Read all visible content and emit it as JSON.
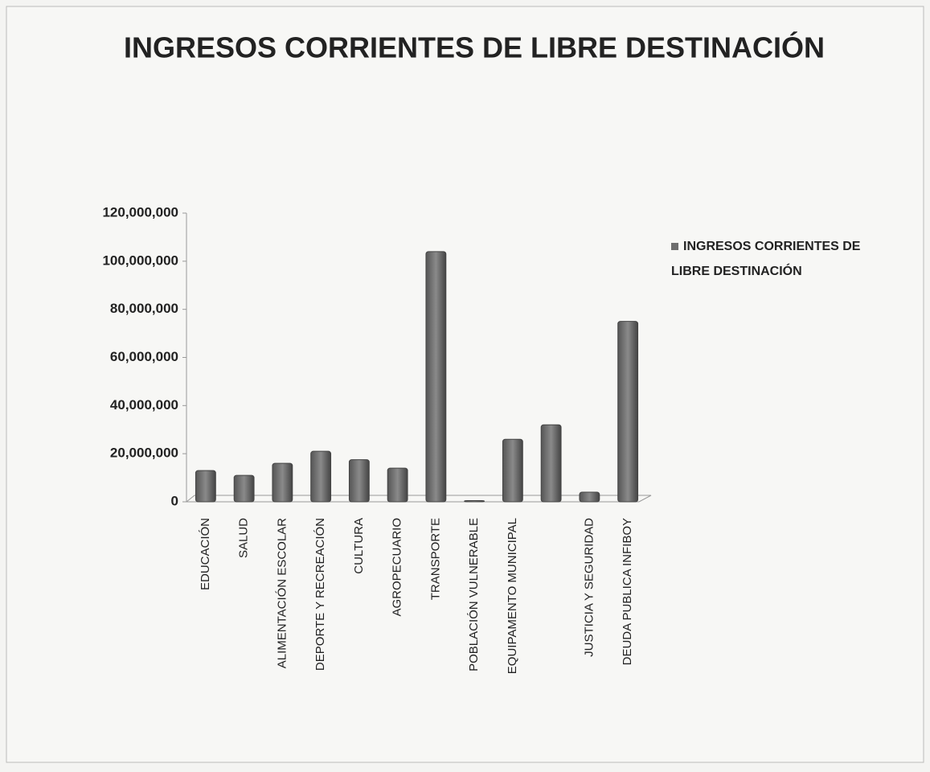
{
  "chart_data": {
    "type": "bar",
    "title": "INGRESOS CORRIENTES DE LIBRE DESTINACIÓN",
    "categories": [
      "EDUCACIÓN",
      "SALUD",
      "ALIMENTACIÓN ESCOLAR",
      "DEPORTE Y RECREACIÓN",
      "CULTURA",
      "AGROPECUARIO",
      "TRANSPORTE",
      "POBLACIÓN VULNERABLE",
      "EQUIPAMENTO MUNICIPAL",
      null,
      "JUSTICIA Y SEGURIDAD",
      "DEUDA PUBLICA INFIBOY"
    ],
    "series": [
      {
        "name": "INGRESOS CORRIENTES DE LIBRE DESTINACIÓN",
        "color": "#6e6e6e",
        "values": [
          13000000,
          11000000,
          16000000,
          21000000,
          17500000,
          14000000,
          104000000,
          500000,
          26000000,
          32000000,
          4000000,
          75000000
        ]
      }
    ],
    "ylim": [
      0,
      120000000
    ],
    "yticks": [
      0,
      {
        "value": 20000000,
        "label": "20,000,000"
      },
      {
        "value": 40000000,
        "label": "40,000,000"
      },
      {
        "value": 60000000,
        "label": "60,000,000"
      },
      {
        "value": 80000000,
        "label": "80,000,000"
      },
      {
        "value": 100000000,
        "label": "100,000,000"
      },
      {
        "value": 120000000,
        "label": "120,000,000"
      }
    ],
    "legend": "right"
  }
}
